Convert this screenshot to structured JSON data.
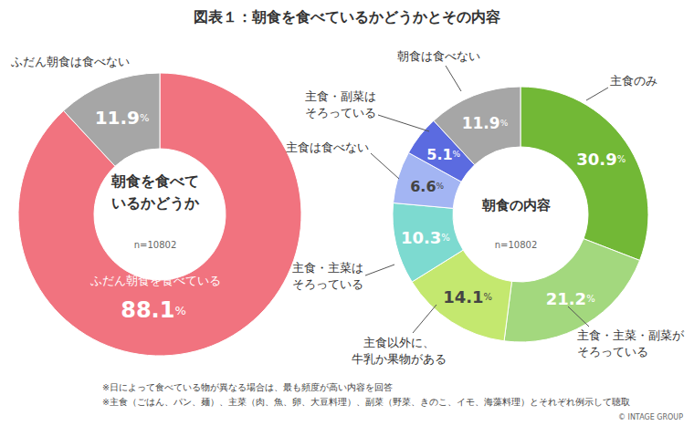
{
  "title": "図表１：朝食を食べているかどうかとその内容",
  "chart_data": [
    {
      "type": "donut",
      "center_text": "朝食を食べて\nいるかどうか",
      "center_note": "n=10802",
      "categories": [
        "ふだん朝食を食べている",
        "ふだん朝食は食べない"
      ],
      "values": [
        88.1,
        11.9
      ],
      "value_labels": [
        "88.1%",
        "11.9%"
      ],
      "colors": [
        "#f1737f",
        "#a6a6a6"
      ],
      "data_labels": true
    },
    {
      "type": "donut",
      "center_text": "朝食の内容",
      "center_note": "n=10802",
      "categories": [
        "主食のみ",
        "主食・主菜・副菜が\nそろっている",
        "主食以外に、\n牛乳か果物がある",
        "主食・主菜は\nそろっている",
        "主食は食べない",
        "主食・副菜は\nそろっている",
        "朝食は食べない"
      ],
      "values": [
        30.9,
        21.2,
        14.1,
        10.3,
        6.6,
        5.1,
        11.9
      ],
      "value_labels": [
        "30.9%",
        "21.2%",
        "14.1%",
        "10.3%",
        "6.6%",
        "5.1%",
        "11.9%"
      ],
      "colors": [
        "#72b836",
        "#a3d87e",
        "#c4e86f",
        "#7ddad0",
        "#a3b5f3",
        "#5b6be0",
        "#a6a6a6"
      ],
      "data_labels": true
    }
  ],
  "notes": [
    "※日によって食べている物が異なる場合は、最も頻度が高い内容を回答",
    "※主食（ごはん、パン、麺）、主菜（肉、魚、卵、大豆料理）、副菜（野菜、きのこ、イモ、海藻料理）とそれぞれ例示して聴取"
  ],
  "credit": "© INTAGE GROUP"
}
